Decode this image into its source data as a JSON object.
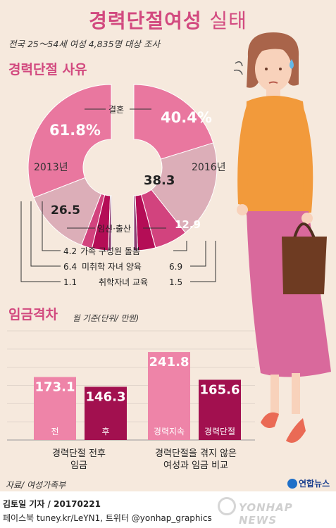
{
  "title_main": "경력단절여성",
  "title_sub": "실태",
  "subtitle": "전국 25～54세 여성 4,835명 대상 조사",
  "section1_title": "경력단절 사유",
  "section2_title": "임금격차",
  "section2_note": "월 기준(단위/ 만원)",
  "source": "자료/ 여성가족부",
  "brand": "연합뉴스",
  "footer_line1": "김토일 기자 / 20170221",
  "footer_line2": "페이스북 tuney.kr/LeYN1, 트위터 @yonhap_graphics",
  "watermark": "YONHAP NEWS",
  "colors": {
    "marriage": "#e9779f",
    "childbirth": "#dcaeb8",
    "family_care": "#d2437e",
    "childcare": "#b40d56",
    "school_child": "#8a3b71",
    "bar_pre": "#ee84a8",
    "bar_post": "#a2104f",
    "bar_no_break": "#ee84a8",
    "bar_break": "#a2104f",
    "title": "#d2497f"
  },
  "chart_data": [
    {
      "type": "pie",
      "title": "경력단절 사유",
      "years": [
        "2013년",
        "2016년"
      ],
      "categories": [
        "결혼",
        "임신·출산",
        "가족 구성원 돌봄",
        "미취학 자녀 양육",
        "취학자녀 교육"
      ],
      "series": [
        {
          "name": "2013년",
          "values": [
            61.8,
            26.5,
            4.2,
            6.4,
            1.1
          ],
          "labels": [
            "61.8%",
            "26.5",
            "4.2",
            "6.4",
            "1.1"
          ]
        },
        {
          "name": "2016년",
          "values": [
            40.4,
            38.3,
            12.9,
            6.9,
            1.5
          ],
          "labels": [
            "40.4%",
            "38.3",
            "12.9",
            "6.9",
            "1.5"
          ]
        }
      ]
    },
    {
      "type": "bar",
      "title": "임금격차",
      "note": "월 기준(단위/ 만원)",
      "ylim": [
        0,
        300
      ],
      "grid": true,
      "categories": [
        "전",
        "후",
        "경력지속",
        "경력단절"
      ],
      "values": [
        173.1,
        146.3,
        241.8,
        165.6
      ],
      "groups": [
        "경력단절 전후\n임금",
        "경력단절을 겪지 않은\n여성과 임금 비교"
      ]
    }
  ]
}
